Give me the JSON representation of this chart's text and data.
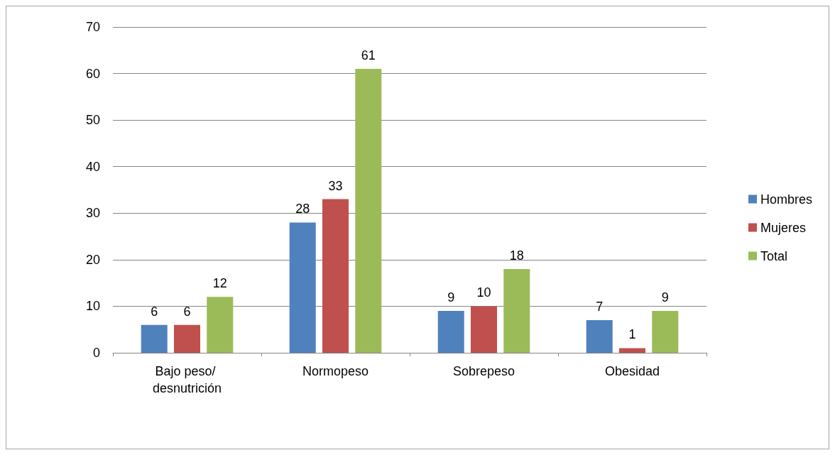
{
  "chart_data": {
    "type": "bar",
    "categories": [
      "Bajo peso/ desnutrición",
      "Normopeso",
      "Sobrepeso",
      "Obesidad"
    ],
    "series": [
      {
        "name": "Hombres",
        "color": "#4f81bd",
        "values": [
          6,
          28,
          9,
          7
        ]
      },
      {
        "name": "Mujeres",
        "color": "#c0504d",
        "values": [
          6,
          33,
          10,
          1
        ]
      },
      {
        "name": "Total",
        "color": "#9bbb59",
        "values": [
          12,
          61,
          18,
          9
        ]
      }
    ],
    "ylim": [
      0,
      70
    ],
    "yticks": [
      0,
      10,
      20,
      30,
      40,
      50,
      60,
      70
    ],
    "grid": "y",
    "legend": "right",
    "data_labels": true
  }
}
